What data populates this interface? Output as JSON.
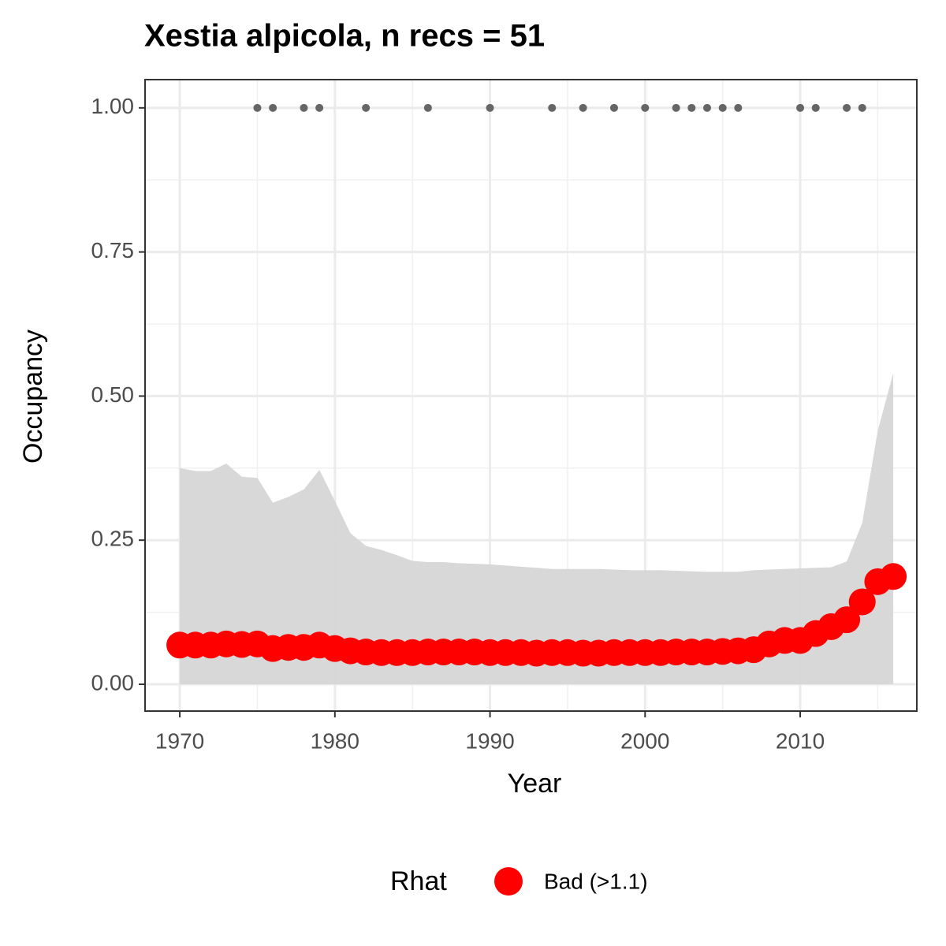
{
  "chart_data": {
    "type": "occupancy",
    "title": "Xestia alpicola, n recs = 51",
    "xlabel": "Year",
    "ylabel": "Occupancy",
    "x": [
      1970,
      1971,
      1972,
      1973,
      1974,
      1975,
      1976,
      1977,
      1978,
      1979,
      1980,
      1981,
      1982,
      1983,
      1984,
      1985,
      1986,
      1987,
      1988,
      1989,
      1990,
      1991,
      1992,
      1993,
      1994,
      1995,
      1996,
      1997,
      1998,
      1999,
      2000,
      2001,
      2002,
      2003,
      2004,
      2005,
      2006,
      2007,
      2008,
      2009,
      2010,
      2011,
      2012,
      2013,
      2014,
      2015,
      2016
    ],
    "series": [
      {
        "name": "Bad (>1.1)",
        "color": "#ff0000",
        "values": [
          0.068,
          0.068,
          0.068,
          0.07,
          0.069,
          0.07,
          0.062,
          0.064,
          0.064,
          0.068,
          0.062,
          0.058,
          0.056,
          0.055,
          0.055,
          0.055,
          0.056,
          0.056,
          0.056,
          0.056,
          0.055,
          0.055,
          0.055,
          0.054,
          0.055,
          0.055,
          0.054,
          0.054,
          0.055,
          0.055,
          0.055,
          0.055,
          0.056,
          0.056,
          0.056,
          0.057,
          0.058,
          0.06,
          0.07,
          0.076,
          0.076,
          0.088,
          0.1,
          0.112,
          0.143,
          0.178,
          0.187
        ]
      }
    ],
    "band": {
      "color": "#d6d6d6",
      "upper": [
        0.375,
        0.37,
        0.37,
        0.383,
        0.36,
        0.358,
        0.315,
        0.325,
        0.338,
        0.372,
        0.318,
        0.262,
        0.24,
        0.233,
        0.224,
        0.214,
        0.212,
        0.212,
        0.21,
        0.209,
        0.208,
        0.206,
        0.204,
        0.202,
        0.2,
        0.2,
        0.2,
        0.2,
        0.199,
        0.198,
        0.198,
        0.198,
        0.197,
        0.196,
        0.195,
        0.195,
        0.195,
        0.198,
        0.199,
        0.2,
        0.201,
        0.202,
        0.203,
        0.213,
        0.28,
        0.44,
        0.54
      ],
      "lower": [
        0,
        0,
        0,
        0,
        0,
        0,
        0,
        0,
        0,
        0,
        0,
        0,
        0,
        0,
        0,
        0,
        0,
        0,
        0,
        0,
        0,
        0,
        0,
        0,
        0,
        0,
        0,
        0,
        0,
        0,
        0,
        0,
        0,
        0,
        0,
        0,
        0,
        0,
        0,
        0,
        0,
        0,
        0,
        0,
        0,
        0,
        0
      ]
    },
    "records": {
      "color": "#666666",
      "x": [
        1975,
        1976,
        1978,
        1979,
        1982,
        1986,
        1990,
        1994,
        1996,
        1998,
        2000,
        2002,
        2003,
        2004,
        2005,
        2006,
        2010,
        2011,
        2013,
        2014
      ],
      "values": [
        1,
        1,
        1,
        1,
        1,
        1,
        1,
        1,
        1,
        1,
        1,
        1,
        1,
        1,
        1,
        1,
        1,
        1,
        1,
        1
      ]
    },
    "legend_title": "Rhat",
    "xlim": [
      1967.76,
      2017.52
    ],
    "ylim": [
      -0.0465,
      1.049
    ],
    "xticks": [
      1970,
      1980,
      1990,
      2000,
      2010
    ],
    "yticks": [
      {
        "value": 0,
        "label": "0.00"
      },
      {
        "value": 0.25,
        "label": "0.25"
      },
      {
        "value": 0.5,
        "label": "0.50"
      },
      {
        "value": 0.75,
        "label": "0.75"
      },
      {
        "value": 1,
        "label": "1.00"
      }
    ],
    "x_minor_grid": [
      1975,
      1985,
      1995,
      2005,
      2015
    ],
    "y_minor_grid": [
      0.125,
      0.375,
      0.625,
      0.875
    ],
    "grid": true
  }
}
